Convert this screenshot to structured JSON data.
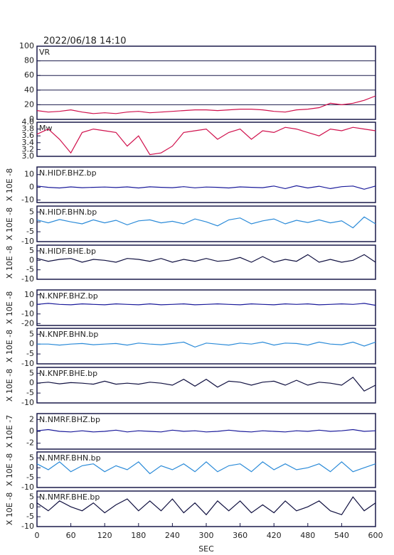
{
  "title": "2022/06/18 14:10",
  "chart_data": [
    {
      "type": "line",
      "label": "VR",
      "color": "#d0104c",
      "grid": true,
      "xlim": [
        0,
        600
      ],
      "ylim": [
        0,
        100
      ],
      "yticks": [
        0,
        20,
        40,
        60,
        80,
        100
      ],
      "x": [
        0,
        20,
        40,
        60,
        80,
        100,
        120,
        140,
        160,
        180,
        200,
        220,
        240,
        260,
        280,
        300,
        320,
        340,
        360,
        380,
        400,
        420,
        440,
        460,
        480,
        500,
        520,
        540,
        560,
        580,
        600
      ],
      "values": [
        12,
        10,
        11,
        13,
        10,
        8,
        9,
        8,
        10,
        11,
        9,
        10,
        11,
        12,
        13,
        13,
        12,
        13,
        14,
        14,
        13,
        11,
        10,
        13,
        14,
        16,
        22,
        20,
        22,
        26,
        32
      ]
    },
    {
      "type": "line",
      "label": "Mw",
      "color": "#d0104c",
      "grid": false,
      "xlim": [
        0,
        600
      ],
      "ylim": [
        3.0,
        4.0
      ],
      "yticks": [
        {
          "value": 3.0,
          "label": "3.0"
        },
        3.2,
        3.4,
        3.6,
        3.8,
        {
          "value": 4.0,
          "label": "4.0"
        }
      ],
      "x": [
        0,
        20,
        40,
        60,
        80,
        100,
        120,
        140,
        160,
        180,
        200,
        220,
        240,
        260,
        280,
        300,
        320,
        340,
        360,
        380,
        400,
        420,
        440,
        460,
        480,
        500,
        520,
        540,
        560,
        580,
        600
      ],
      "values": [
        3.65,
        3.8,
        3.5,
        3.1,
        3.7,
        3.8,
        3.75,
        3.7,
        3.3,
        3.6,
        3.05,
        3.1,
        3.3,
        3.7,
        3.75,
        3.8,
        3.5,
        3.7,
        3.8,
        3.5,
        3.75,
        3.7,
        3.85,
        3.8,
        3.7,
        3.6,
        3.8,
        3.75,
        3.85,
        3.8,
        3.75
      ]
    },
    {
      "type": "line",
      "label": "N.HIDF.BHZ.bp",
      "ylabel": "X 10E -8",
      "color": "#1a1a9a",
      "grid": false,
      "xlim": [
        0,
        600
      ],
      "ylim": [
        -12,
        16
      ],
      "yticks": [
        -10,
        0,
        10
      ],
      "x": [
        0,
        20,
        40,
        60,
        80,
        100,
        120,
        140,
        160,
        180,
        200,
        220,
        240,
        260,
        280,
        300,
        320,
        340,
        360,
        380,
        400,
        420,
        440,
        460,
        480,
        500,
        520,
        540,
        560,
        580,
        600
      ],
      "values": [
        1,
        0,
        -0.5,
        0.3,
        -0.3,
        0,
        0.2,
        -0.2,
        0.3,
        -0.5,
        0.4,
        0,
        -0.3,
        0.5,
        -0.4,
        0.2,
        0,
        -0.5,
        0.3,
        0,
        -0.3,
        1,
        -1,
        1.2,
        -0.5,
        0.8,
        -1,
        0.5,
        1,
        -1.5,
        1
      ]
    },
    {
      "type": "line",
      "label": "N.HIDF.BHN.bp",
      "ylabel": "X 10E -8",
      "color": "#2a8ad8",
      "grid": false,
      "xlim": [
        0,
        600
      ],
      "ylim": [
        -10,
        8
      ],
      "yticks": [
        -10,
        -5,
        0,
        5
      ],
      "x": [
        0,
        20,
        40,
        60,
        80,
        100,
        120,
        140,
        160,
        180,
        200,
        220,
        240,
        260,
        280,
        300,
        320,
        340,
        360,
        380,
        400,
        420,
        440,
        460,
        480,
        500,
        520,
        540,
        560,
        580,
        600
      ],
      "values": [
        1,
        -0.5,
        1.2,
        0,
        -1,
        1,
        -0.5,
        0.8,
        -1.5,
        0.5,
        1,
        -0.5,
        0.3,
        -1,
        1.5,
        0,
        -2,
        1,
        2,
        -1,
        0.5,
        1.5,
        -1,
        0.8,
        -0.3,
        1,
        -0.5,
        0.5,
        -3,
        2.5,
        -1
      ]
    },
    {
      "type": "line",
      "label": "N.HIDF.BHE.bp",
      "ylabel": "X 10E -8",
      "color": "#101040",
      "grid": false,
      "xlim": [
        0,
        600
      ],
      "ylim": [
        -10,
        8
      ],
      "yticks": [
        -10,
        -5,
        0,
        5
      ],
      "x": [
        0,
        20,
        40,
        60,
        80,
        100,
        120,
        140,
        160,
        180,
        200,
        220,
        240,
        260,
        280,
        300,
        320,
        340,
        360,
        380,
        400,
        420,
        440,
        460,
        480,
        500,
        520,
        540,
        560,
        580,
        600
      ],
      "values": [
        1,
        -0.5,
        0.5,
        1,
        -1,
        0.5,
        0,
        -1,
        1,
        0.5,
        -0.5,
        1,
        -1,
        0.5,
        -0.5,
        1,
        -0.5,
        0,
        1.5,
        -1,
        2,
        -1,
        0.5,
        -0.5,
        3,
        -1,
        0.5,
        -1,
        0,
        3,
        -1
      ]
    },
    {
      "type": "line",
      "label": "N.KNPF.BHZ.bp",
      "ylabel": "X 10E -8",
      "color": "#1a1a9a",
      "grid": false,
      "xlim": [
        0,
        600
      ],
      "ylim": [
        -22,
        15
      ],
      "yticks": [
        -20,
        -10,
        0,
        10
      ],
      "x": [
        0,
        20,
        40,
        60,
        80,
        100,
        120,
        140,
        160,
        180,
        200,
        220,
        240,
        260,
        280,
        300,
        320,
        340,
        360,
        380,
        400,
        420,
        440,
        460,
        480,
        500,
        520,
        540,
        560,
        580,
        600
      ],
      "values": [
        0,
        1,
        0,
        -0.5,
        0.5,
        0,
        -0.5,
        0.5,
        0,
        -0.5,
        0.5,
        -0.5,
        0,
        0.5,
        -0.5,
        0,
        0.5,
        0,
        -0.5,
        0.5,
        0,
        -0.5,
        0.5,
        0,
        0.5,
        -0.5,
        0,
        0.5,
        0,
        1,
        -1
      ]
    },
    {
      "type": "line",
      "label": "N.KNPF.BHN.bp",
      "ylabel": "X 10E -8",
      "color": "#2a8ad8",
      "grid": false,
      "xlim": [
        0,
        600
      ],
      "ylim": [
        -10,
        8
      ],
      "yticks": [
        -10,
        -5,
        0,
        5
      ],
      "x": [
        0,
        20,
        40,
        60,
        80,
        100,
        120,
        140,
        160,
        180,
        200,
        220,
        240,
        260,
        280,
        300,
        320,
        340,
        360,
        380,
        400,
        420,
        440,
        460,
        480,
        500,
        520,
        540,
        560,
        580,
        600
      ],
      "values": [
        0,
        0,
        -0.5,
        0,
        0.3,
        -0.3,
        0,
        0.3,
        -0.5,
        0.5,
        0,
        -0.3,
        0.3,
        1,
        -1.5,
        0.5,
        0,
        -0.5,
        0.5,
        0,
        1,
        -0.5,
        0.5,
        0.3,
        -0.5,
        1,
        0,
        -0.3,
        1,
        -1,
        1
      ]
    },
    {
      "type": "line",
      "label": "N.KNPF.BHE.bp",
      "ylabel": "X 10E -8",
      "color": "#101040",
      "grid": false,
      "xlim": [
        0,
        600
      ],
      "ylim": [
        -10,
        8
      ],
      "yticks": [
        -10,
        -5,
        0,
        5
      ],
      "x": [
        0,
        20,
        40,
        60,
        80,
        100,
        120,
        140,
        160,
        180,
        200,
        220,
        240,
        260,
        280,
        300,
        320,
        340,
        360,
        380,
        400,
        420,
        440,
        460,
        480,
        500,
        520,
        540,
        560,
        580,
        600
      ],
      "values": [
        0,
        0.5,
        -0.3,
        0.3,
        0,
        -0.5,
        1,
        -0.5,
        0,
        -0.5,
        0.5,
        0,
        -1,
        2,
        -1.5,
        2,
        -2,
        1,
        0.5,
        -1,
        0.5,
        1,
        -1,
        1.5,
        -1,
        0.5,
        0,
        -1,
        3,
        -4,
        -1
      ]
    },
    {
      "type": "line",
      "label": "N.NMRF.BHZ.bp",
      "ylabel": "X 10E -7",
      "color": "#1a1a9a",
      "grid": false,
      "xlim": [
        0,
        600
      ],
      "ylim": [
        -3,
        3
      ],
      "yticks": [
        -2,
        0,
        2
      ],
      "x": [
        0,
        20,
        40,
        60,
        80,
        100,
        120,
        140,
        160,
        180,
        200,
        220,
        240,
        260,
        280,
        300,
        320,
        340,
        360,
        380,
        400,
        420,
        440,
        460,
        480,
        500,
        520,
        540,
        560,
        580,
        600
      ],
      "values": [
        0.1,
        0.3,
        0,
        -0.1,
        0.1,
        -0.1,
        0,
        0.2,
        -0.1,
        0.1,
        0,
        -0.1,
        0.2,
        0,
        0.1,
        -0.1,
        0,
        0.2,
        0,
        -0.1,
        0.1,
        0,
        -0.1,
        0.1,
        0,
        0.2,
        0,
        0.1,
        0.3,
        0,
        0.1
      ]
    },
    {
      "type": "line",
      "label": "N.NMRF.BHN.bp",
      "ylabel": "X 10E -8",
      "color": "#2a8ad8",
      "grid": false,
      "xlim": [
        0,
        600
      ],
      "ylim": [
        -10,
        8
      ],
      "yticks": [
        -10,
        -5,
        0,
        5
      ],
      "x": [
        0,
        20,
        40,
        60,
        80,
        100,
        120,
        140,
        160,
        180,
        200,
        220,
        240,
        260,
        280,
        300,
        320,
        340,
        360,
        380,
        400,
        420,
        440,
        460,
        480,
        500,
        520,
        540,
        560,
        580,
        600
      ],
      "values": [
        2,
        -1,
        3,
        -2,
        1,
        2,
        -2,
        1,
        -1,
        3,
        -3,
        1,
        -1,
        2,
        -2,
        3,
        -2,
        1,
        2,
        -2,
        3,
        -1,
        2,
        -1,
        0,
        2,
        -2,
        3,
        -2,
        0,
        2
      ]
    },
    {
      "type": "line",
      "label": "N.NMRF.BHE.bp",
      "ylabel": "X 10E -8",
      "color": "#101040",
      "grid": false,
      "xlim": [
        0,
        600
      ],
      "ylim": [
        -10,
        8
      ],
      "yticks": [
        -10,
        -5,
        0,
        5
      ],
      "xticks": [
        0,
        60,
        120,
        180,
        240,
        300,
        360,
        420,
        480,
        540,
        600
      ],
      "xlabel": "SEC",
      "x": [
        0,
        20,
        40,
        60,
        80,
        100,
        120,
        140,
        160,
        180,
        200,
        220,
        240,
        260,
        280,
        300,
        320,
        340,
        360,
        380,
        400,
        420,
        440,
        460,
        480,
        500,
        520,
        540,
        560,
        580,
        600
      ],
      "values": [
        2,
        -2,
        3,
        0,
        -2,
        2,
        -3,
        1,
        4,
        -2,
        3,
        -2,
        4,
        -3,
        2,
        -4,
        3,
        -2,
        3,
        -3,
        1,
        -3,
        3,
        -2,
        0,
        3,
        -2,
        -4,
        5,
        -2,
        2
      ]
    }
  ]
}
